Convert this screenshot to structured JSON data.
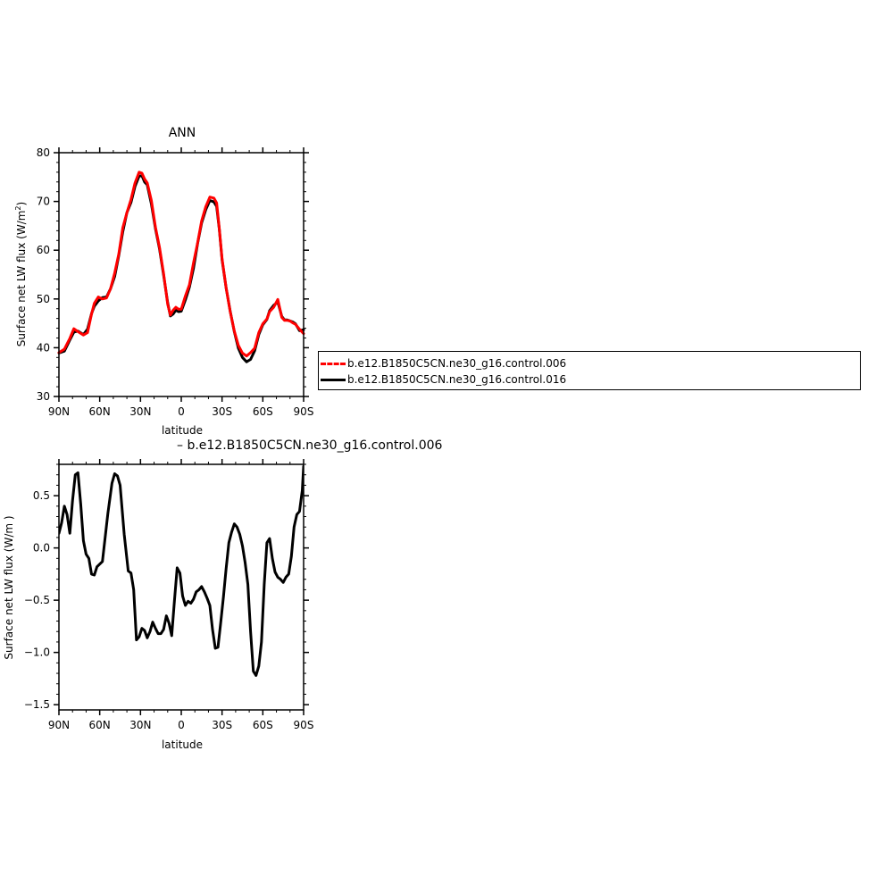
{
  "chart_data": [
    {
      "type": "line",
      "title": "ANN",
      "xlabel": "latitude",
      "ylabel": "Surface net LW flux (W/m",
      "ylabel_sup": "2",
      "ylabel_end": ")",
      "xlim": [
        90,
        -90
      ],
      "ylim": [
        30,
        80
      ],
      "xticks": [
        90,
        60,
        30,
        0,
        -30,
        -60,
        -90
      ],
      "xtick_labels": [
        "90N",
        "60N",
        "30N",
        "0",
        "30S",
        "60S",
        "90S"
      ],
      "yticks": [
        30,
        40,
        50,
        60,
        70,
        80
      ],
      "ytick_labels": [
        "30",
        "40",
        "50",
        "60",
        "70",
        "80"
      ],
      "series": [
        {
          "name": "b.e12.B1850C5CN.ne30_g16.control.016",
          "color": "#000000",
          "x": [
            90,
            86,
            82,
            79,
            76,
            72,
            69,
            66,
            64,
            61,
            58,
            55,
            52,
            49,
            46,
            43,
            40,
            37,
            34,
            31,
            29,
            27,
            25,
            22,
            19,
            16,
            13,
            10,
            8,
            6,
            4,
            2,
            0,
            -3,
            -6,
            -9,
            -12,
            -15,
            -18,
            -21,
            -24,
            -26,
            -28,
            -30,
            -33,
            -36,
            -39,
            -42,
            -45,
            -48,
            -51,
            -54,
            -57,
            -60,
            -63,
            -65,
            -68,
            -71,
            -74,
            -76,
            -78,
            -80,
            -82,
            -84,
            -87,
            -90
          ],
          "values": [
            38.9,
            39.3,
            41.6,
            43.2,
            43.4,
            42.7,
            43.8,
            47.0,
            48.5,
            49.6,
            50.3,
            50.4,
            52.1,
            54.6,
            58.9,
            63.8,
            67.7,
            69.8,
            73.1,
            75.2,
            75.3,
            74.0,
            73.4,
            69.5,
            64.4,
            60.3,
            54.9,
            49.2,
            46.5,
            46.9,
            47.7,
            47.4,
            47.5,
            49.8,
            52.4,
            56.3,
            61.4,
            65.6,
            68.3,
            70.2,
            69.9,
            69.0,
            64.3,
            58.0,
            52.3,
            47.5,
            43.3,
            39.9,
            38.0,
            37.1,
            37.6,
            39.4,
            42.7,
            44.7,
            45.8,
            47.6,
            48.7,
            49.4,
            46.4,
            45.7,
            45.7,
            45.5,
            45.3,
            44.9,
            43.5,
            43.7
          ]
        },
        {
          "name": "b.e12.B1850C5CN.ne30_g16.control.006",
          "color": "#ff0000",
          "x": [
            90,
            86,
            82,
            79,
            76,
            72,
            69,
            66,
            64,
            61,
            58,
            55,
            52,
            49,
            46,
            43,
            40,
            37,
            34,
            31,
            29,
            27,
            25,
            22,
            19,
            16,
            13,
            10,
            8,
            6,
            4,
            2,
            0,
            -3,
            -6,
            -9,
            -12,
            -15,
            -18,
            -21,
            -24,
            -26,
            -28,
            -30,
            -33,
            -36,
            -39,
            -42,
            -45,
            -48,
            -51,
            -54,
            -57,
            -60,
            -63,
            -65,
            -68,
            -71,
            -74,
            -76,
            -78,
            -80,
            -82,
            -84,
            -87,
            -90
          ],
          "values": [
            39.0,
            39.7,
            41.9,
            43.9,
            43.3,
            42.6,
            43.1,
            46.9,
            49.1,
            50.4,
            50.0,
            50.2,
            52.1,
            55.3,
            59.2,
            64.6,
            67.7,
            70.4,
            73.8,
            76.0,
            75.8,
            74.6,
            73.8,
            70.2,
            64.7,
            60.6,
            55.2,
            48.9,
            46.7,
            47.7,
            48.3,
            47.9,
            47.9,
            50.6,
            52.9,
            57.4,
            61.5,
            66.0,
            68.9,
            70.9,
            70.7,
            69.7,
            64.4,
            58.2,
            52.3,
            47.4,
            43.4,
            40.5,
            38.9,
            38.3,
            39.0,
            39.9,
            43.1,
            44.9,
            45.9,
            47.4,
            48.3,
            49.9,
            46.2,
            45.6,
            45.6,
            45.5,
            45.1,
            44.8,
            43.8,
            42.9
          ]
        }
      ],
      "legend": {
        "entries": [
          {
            "label": "b.e12.B1850C5CN.ne30_g16.control.006",
            "color": "#ff0000"
          },
          {
            "label": "b.e12.B1850C5CN.ne30_g16.control.016",
            "color": "#000000"
          }
        ],
        "placement": "right"
      }
    },
    {
      "type": "line",
      "title": " – b.e12.B1850C5CN.ne30_g16.control.006",
      "xlabel": "latitude",
      "ylabel": "Surface net LW flux (W/m )",
      "xlim": [
        90,
        -90
      ],
      "ylim": [
        -1.55,
        0.8
      ],
      "xticks": [
        90,
        60,
        30,
        0,
        -30,
        -60,
        -90
      ],
      "xtick_labels": [
        "90N",
        "60N",
        "30N",
        "0",
        "30S",
        "60S",
        "90S"
      ],
      "yticks": [
        -1.5,
        -1.0,
        -0.5,
        0.0,
        0.5
      ],
      "ytick_labels": [
        "−1.5",
        "−1.0",
        "−0.5",
        "0.0",
        "0.5"
      ],
      "series": [
        {
          "color": "#000000",
          "x": [
            90,
            88,
            86,
            84,
            82,
            80,
            78,
            76,
            74,
            72,
            70,
            68,
            66,
            64,
            62,
            58,
            54,
            51,
            49,
            47,
            45,
            42,
            39,
            37,
            35,
            33,
            31,
            29,
            27,
            25,
            23,
            21,
            19,
            17,
            15,
            13,
            11,
            9,
            7,
            5,
            3,
            1,
            -1,
            -3,
            -5,
            -7,
            -9,
            -11,
            -13,
            -15,
            -17,
            -19,
            -21,
            -23,
            -25,
            -27,
            -29,
            -31,
            -33,
            -35,
            -37,
            -39,
            -41,
            -43,
            -45,
            -47,
            -49,
            -51,
            -53,
            -55,
            -57,
            -59,
            -61,
            -63,
            -65,
            -67,
            -69,
            -71,
            -73,
            -75,
            -77,
            -79,
            -81,
            -83,
            -85,
            -87,
            -89,
            -90
          ],
          "values": [
            0.14,
            0.24,
            0.4,
            0.32,
            0.14,
            0.45,
            0.7,
            0.72,
            0.42,
            0.07,
            -0.06,
            -0.1,
            -0.25,
            -0.26,
            -0.18,
            -0.13,
            0.33,
            0.62,
            0.71,
            0.69,
            0.6,
            0.13,
            -0.22,
            -0.24,
            -0.4,
            -0.88,
            -0.85,
            -0.77,
            -0.79,
            -0.86,
            -0.8,
            -0.71,
            -0.77,
            -0.82,
            -0.82,
            -0.78,
            -0.65,
            -0.72,
            -0.84,
            -0.5,
            -0.19,
            -0.24,
            -0.46,
            -0.55,
            -0.51,
            -0.53,
            -0.49,
            -0.42,
            -0.4,
            -0.37,
            -0.42,
            -0.48,
            -0.55,
            -0.78,
            -0.96,
            -0.95,
            -0.72,
            -0.47,
            -0.2,
            0.05,
            0.15,
            0.23,
            0.2,
            0.13,
            0.02,
            -0.14,
            -0.35,
            -0.8,
            -1.18,
            -1.22,
            -1.13,
            -0.9,
            -0.35,
            0.05,
            0.09,
            -0.1,
            -0.23,
            -0.28,
            -0.3,
            -0.33,
            -0.28,
            -0.25,
            -0.08,
            0.2,
            0.32,
            0.35,
            0.55,
            0.78
          ]
        }
      ]
    }
  ]
}
